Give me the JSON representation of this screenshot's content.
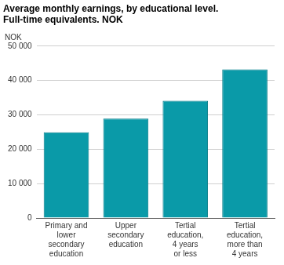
{
  "chart_data": {
    "type": "bar",
    "title": [
      "Average monthly earnings, by educational level.",
      "Full-time equivalents. NOK"
    ],
    "y_label": "NOK",
    "categories": [
      [
        "Primary and",
        "lower",
        "secondary",
        "education"
      ],
      [
        "Upper",
        "secondary",
        "education"
      ],
      [
        "Tertial",
        "education,",
        "4 years",
        "or less"
      ],
      [
        "Tertial",
        "education,",
        "more than",
        "4 years"
      ]
    ],
    "values": [
      24900,
      28900,
      34100,
      43200
    ],
    "color": "#0a9aa8",
    "ylim": [
      0,
      50000
    ],
    "yticks": [
      0,
      {
        "value": 10000,
        "label": "10 000"
      },
      {
        "value": 20000,
        "label": "20 000"
      },
      {
        "value": 30000,
        "label": "30 000"
      },
      {
        "value": 40000,
        "label": "40 000"
      },
      {
        "value": 50000,
        "label": "50 000"
      }
    ],
    "grid": true
  }
}
